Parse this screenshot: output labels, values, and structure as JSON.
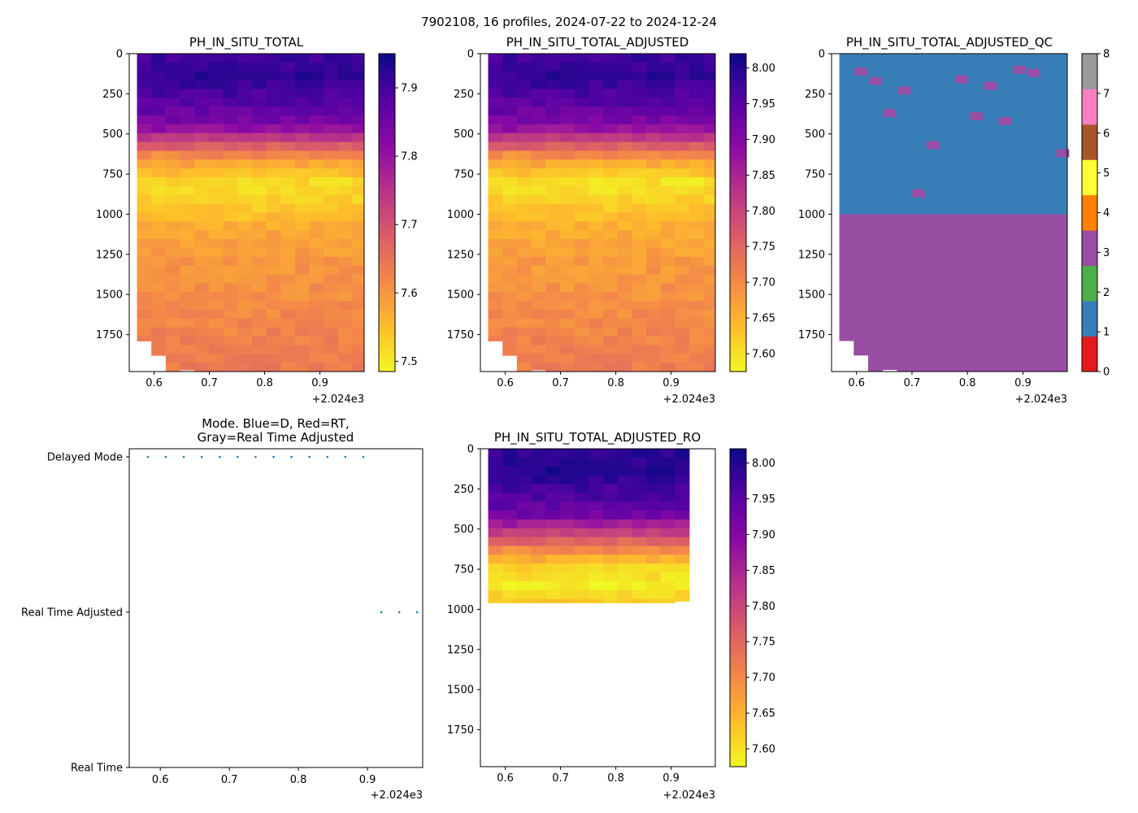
{
  "suptitle": "7902108, 16 profiles, 2024-07-22 to 2024-12-24",
  "chart_data": [
    {
      "id": "ph",
      "type": "heatmap",
      "title": "PH_IN_SITU_TOTAL",
      "xlim": [
        0.555,
        0.98
      ],
      "ylim": [
        1980,
        0
      ],
      "x_ticks": [
        "0.6",
        "0.7",
        "0.8",
        "0.9"
      ],
      "x_offset_label": "+2.024e3",
      "y_ticks": [
        "0",
        "250",
        "500",
        "750",
        "1000",
        "1250",
        "1500",
        "1750"
      ],
      "colorbar": {
        "cmap": "plasma_r",
        "vmin": 7.485,
        "vmax": 7.95,
        "ticks": [
          "7.5",
          "7.6",
          "7.7",
          "7.8",
          "7.9"
        ]
      },
      "profile_times": [
        0.582,
        0.608,
        0.634,
        0.66,
        0.686,
        0.712,
        0.738,
        0.764,
        0.79,
        0.816,
        0.842,
        0.868,
        0.894,
        0.92,
        0.946,
        0.972
      ],
      "max_depth": [
        1790,
        1880,
        1980,
        1970,
        1980,
        1980,
        1980,
        1980,
        1980,
        1980,
        1980,
        1980,
        1980,
        1980,
        1980,
        1980
      ],
      "depth_profile": [
        [
          0,
          7.9
        ],
        [
          150,
          7.92
        ],
        [
          300,
          7.88
        ],
        [
          450,
          7.83
        ],
        [
          540,
          7.72
        ],
        [
          650,
          7.6
        ],
        [
          800,
          7.52
        ],
        [
          950,
          7.53
        ],
        [
          1100,
          7.58
        ],
        [
          1300,
          7.6
        ],
        [
          1500,
          7.61
        ],
        [
          1800,
          7.63
        ],
        [
          1980,
          7.64
        ]
      ]
    },
    {
      "id": "adj",
      "type": "heatmap",
      "title": "PH_IN_SITU_TOTAL_ADJUSTED",
      "xlim": [
        0.555,
        0.98
      ],
      "ylim": [
        1980,
        0
      ],
      "x_ticks": [
        "0.6",
        "0.7",
        "0.8",
        "0.9"
      ],
      "x_offset_label": "+2.024e3",
      "y_ticks": [
        "0",
        "250",
        "500",
        "750",
        "1000",
        "1250",
        "1500",
        "1750"
      ],
      "colorbar": {
        "cmap": "plasma_r",
        "vmin": 7.575,
        "vmax": 8.02,
        "ticks": [
          "7.60",
          "7.65",
          "7.70",
          "7.75",
          "7.80",
          "7.85",
          "7.90",
          "7.95",
          "8.00"
        ]
      },
      "profile_times": [
        0.582,
        0.608,
        0.634,
        0.66,
        0.686,
        0.712,
        0.738,
        0.764,
        0.79,
        0.816,
        0.842,
        0.868,
        0.894,
        0.92,
        0.946,
        0.972
      ],
      "max_depth": [
        1790,
        1880,
        1980,
        1970,
        1980,
        1980,
        1980,
        1980,
        1980,
        1980,
        1980,
        1980,
        1980,
        1980,
        1980,
        1980
      ],
      "depth_profile": [
        [
          0,
          7.97
        ],
        [
          150,
          7.99
        ],
        [
          300,
          7.95
        ],
        [
          450,
          7.9
        ],
        [
          540,
          7.8
        ],
        [
          650,
          7.68
        ],
        [
          800,
          7.6
        ],
        [
          950,
          7.62
        ],
        [
          1100,
          7.66
        ],
        [
          1300,
          7.68
        ],
        [
          1500,
          7.69
        ],
        [
          1800,
          7.71
        ],
        [
          1980,
          7.72
        ]
      ]
    },
    {
      "id": "qc",
      "type": "heatmap",
      "title": "PH_IN_SITU_TOTAL_ADJUSTED_QC",
      "xlim": [
        0.555,
        0.98
      ],
      "ylim": [
        1980,
        0
      ],
      "x_ticks": [
        "0.6",
        "0.7",
        "0.8",
        "0.9"
      ],
      "x_offset_label": "+2.024e3",
      "y_ticks": [
        "0",
        "250",
        "500",
        "750",
        "1000",
        "1250",
        "1500",
        "1750"
      ],
      "colorbar": {
        "cmap": "qc_flags",
        "vmin": 0,
        "vmax": 8,
        "ticks": [
          "0",
          "1",
          "2",
          "3",
          "4",
          "5",
          "6",
          "7",
          "8"
        ],
        "colors": [
          "#e41a1c",
          "#377eb8",
          "#4daf4a",
          "#984ea3",
          "#ff7f00",
          "#ffff33",
          "#a65628",
          "#f781bf",
          "#999999"
        ]
      },
      "profile_times": [
        0.582,
        0.608,
        0.634,
        0.66,
        0.686,
        0.712,
        0.738,
        0.764,
        0.79,
        0.816,
        0.842,
        0.868,
        0.894,
        0.92,
        0.946,
        0.972
      ],
      "max_depth": [
        1790,
        1880,
        1980,
        1970,
        1980,
        1980,
        1980,
        1980,
        1980,
        1980,
        1980,
        1980,
        1980,
        1980,
        1980,
        1980
      ],
      "flag_upper": 1,
      "flag_lower": 3,
      "flag_split_depth": 1000,
      "flag3_spots": [
        [
          1,
          110
        ],
        [
          2,
          170
        ],
        [
          3,
          370
        ],
        [
          5,
          870
        ],
        [
          6,
          570
        ],
        [
          8,
          160
        ],
        [
          10,
          200
        ],
        [
          11,
          420
        ],
        [
          12,
          100
        ],
        [
          15,
          620
        ],
        [
          9,
          390
        ],
        [
          13,
          120
        ],
        [
          4,
          230
        ]
      ]
    },
    {
      "id": "mode",
      "type": "scatter",
      "title": "Mode. Blue=D, Red=RT,\nGray=Real Time Adjusted",
      "xlim": [
        0.555,
        0.98
      ],
      "x_ticks": [
        "0.6",
        "0.7",
        "0.8",
        "0.9"
      ],
      "x_offset_label": "+2.024e3",
      "y_categories": [
        "Real Time",
        "Real Time Adjusted",
        "Delayed Mode"
      ],
      "points": [
        {
          "x": 0.582,
          "mode": 2
        },
        {
          "x": 0.608,
          "mode": 2
        },
        {
          "x": 0.634,
          "mode": 2
        },
        {
          "x": 0.66,
          "mode": 2
        },
        {
          "x": 0.686,
          "mode": 2
        },
        {
          "x": 0.712,
          "mode": 2
        },
        {
          "x": 0.738,
          "mode": 2
        },
        {
          "x": 0.764,
          "mode": 2
        },
        {
          "x": 0.79,
          "mode": 2
        },
        {
          "x": 0.816,
          "mode": 2
        },
        {
          "x": 0.842,
          "mode": 2
        },
        {
          "x": 0.868,
          "mode": 2
        },
        {
          "x": 0.894,
          "mode": 2
        },
        {
          "x": 0.92,
          "mode": 1
        },
        {
          "x": 0.946,
          "mode": 1
        },
        {
          "x": 0.972,
          "mode": 1
        }
      ]
    },
    {
      "id": "ro",
      "type": "heatmap",
      "title": "PH_IN_SITU_TOTAL_ADJUSTED_RO",
      "xlim": [
        0.555,
        0.98
      ],
      "ylim": [
        1980,
        0
      ],
      "x_ticks": [
        "0.6",
        "0.7",
        "0.8",
        "0.9"
      ],
      "x_offset_label": "+2.024e3",
      "y_ticks": [
        "0",
        "250",
        "500",
        "750",
        "1000",
        "1250",
        "1500",
        "1750"
      ],
      "colorbar": {
        "cmap": "plasma_r",
        "vmin": 7.575,
        "vmax": 8.02,
        "ticks": [
          "7.60",
          "7.65",
          "7.70",
          "7.75",
          "7.80",
          "7.85",
          "7.90",
          "7.95",
          "8.00"
        ]
      },
      "profile_times": [
        0.582,
        0.608,
        0.634,
        0.66,
        0.686,
        0.712,
        0.738,
        0.764,
        0.79,
        0.816,
        0.842,
        0.868,
        0.894,
        0.92
      ],
      "max_depth": [
        960,
        960,
        960,
        960,
        960,
        960,
        960,
        960,
        960,
        960,
        960,
        960,
        960,
        950
      ],
      "depth_profile": [
        [
          0,
          7.99
        ],
        [
          150,
          8.0
        ],
        [
          300,
          7.96
        ],
        [
          420,
          7.92
        ],
        [
          470,
          7.86
        ],
        [
          550,
          7.78
        ],
        [
          650,
          7.68
        ],
        [
          750,
          7.61
        ],
        [
          850,
          7.59
        ],
        [
          960,
          7.62
        ]
      ]
    }
  ]
}
